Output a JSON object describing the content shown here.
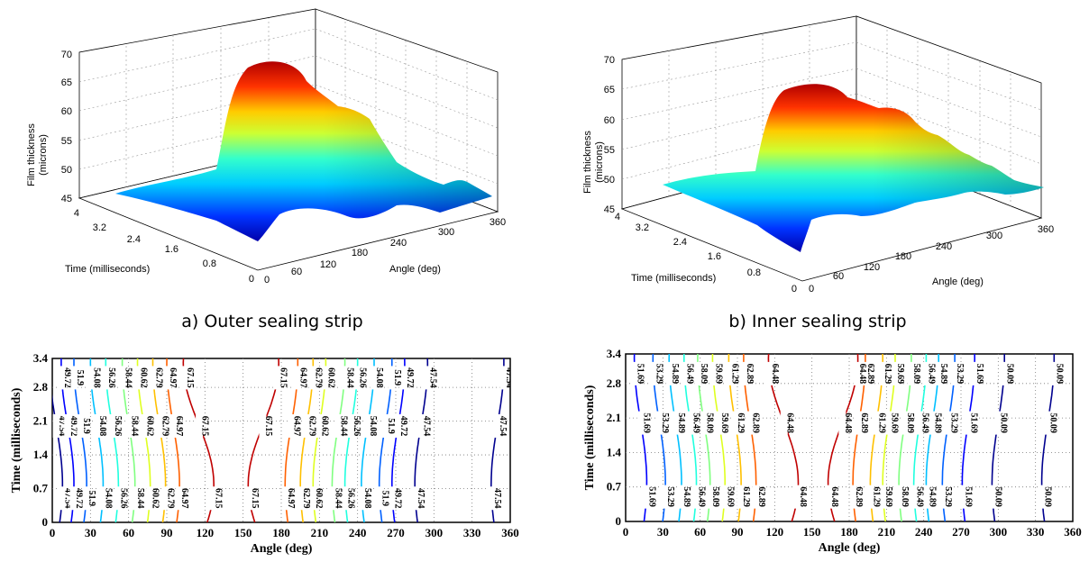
{
  "captions": {
    "a": "a) Outer sealing strip",
    "b": "b) Inner sealing strip"
  },
  "colors": {
    "jet_low": "#0000aa",
    "jet_mid": "#00ffff",
    "jet_high": "#aa0000",
    "grid": "#888888",
    "axis": "#000000"
  },
  "chart_data": [
    {
      "type": "surface",
      "panel": "a",
      "xlabel": "Angle (deg)",
      "ylabel": "Time (milliseconds)",
      "zlabel_lines": [
        "Film thickness",
        "(microns)"
      ],
      "x_ticks": [
        "0",
        "60",
        "120",
        "180",
        "240",
        "300",
        "360"
      ],
      "y_ticks": [
        "0",
        "0.8",
        "1.6",
        "2.4",
        "3.2",
        "4"
      ],
      "z_ticks": [
        "45",
        "50",
        "55",
        "60",
        "65",
        "70"
      ],
      "xlim": [
        0,
        360
      ],
      "ylim": [
        0,
        4
      ],
      "zlim": [
        45,
        70
      ],
      "grid": true,
      "colormap": "jet",
      "profile": {
        "angle": [
          0,
          30,
          60,
          90,
          120,
          135,
          150,
          165,
          180,
          210,
          240,
          270,
          300,
          330,
          360
        ],
        "thickness": [
          46,
          47,
          51,
          58,
          65,
          67,
          67.2,
          66,
          64,
          61,
          56,
          51,
          47,
          45.8,
          45.5
        ]
      }
    },
    {
      "type": "surface",
      "panel": "b",
      "xlabel": "Angle (deg)",
      "ylabel": "Time (milliseconds)",
      "zlabel_lines": [
        "Film thickness",
        "(microns)"
      ],
      "x_ticks": [
        "0",
        "60",
        "120",
        "180",
        "240",
        "300",
        "360"
      ],
      "y_ticks": [
        "0",
        "0.8",
        "1.6",
        "2.4",
        "3.2",
        "4"
      ],
      "z_ticks": [
        "45",
        "50",
        "55",
        "60",
        "65",
        "70"
      ],
      "xlim": [
        0,
        360
      ],
      "ylim": [
        0,
        4
      ],
      "zlim": [
        45,
        70
      ],
      "grid": true,
      "colormap": "jet",
      "profile": {
        "angle": [
          0,
          30,
          60,
          90,
          120,
          150,
          180,
          210,
          240,
          270,
          300,
          330,
          360
        ],
        "thickness": [
          49,
          51,
          56,
          60.5,
          64,
          64.5,
          63,
          61,
          57,
          53,
          51,
          49.5,
          48.5
        ]
      }
    },
    {
      "type": "contour",
      "panel": "c",
      "xlabel": "Angle (deg)",
      "ylabel": "Time (milliseconds)",
      "x_ticks": [
        "0",
        "30",
        "60",
        "90",
        "120",
        "150",
        "180",
        "210",
        "240",
        "270",
        "300",
        "330",
        "360"
      ],
      "y_ticks": [
        "0",
        "0.7",
        "1.4",
        "2.1",
        "2.8",
        "3.4"
      ],
      "xlim": [
        0,
        360
      ],
      "ylim": [
        0,
        3.4
      ],
      "grid": true,
      "levels": [
        {
          "label": "47.54",
          "angles": [
            3,
            290,
            350
          ]
        },
        {
          "label": "49.72",
          "angles": [
            12,
            272
          ]
        },
        {
          "label": "51.9",
          "angles": [
            22,
            262
          ]
        },
        {
          "label": "54.08",
          "angles": [
            35,
            248
          ]
        },
        {
          "label": "56.26",
          "angles": [
            47,
            235
          ]
        },
        {
          "label": "58.44",
          "angles": [
            60,
            225
          ]
        },
        {
          "label": "60.62",
          "angles": [
            72,
            210
          ]
        },
        {
          "label": "62.79",
          "angles": [
            84,
            200
          ]
        },
        {
          "label": "64.97",
          "angles": [
            95,
            188
          ]
        },
        {
          "label": "67.15",
          "angles": [
            115,
            166
          ]
        }
      ]
    },
    {
      "type": "contour",
      "panel": "d",
      "xlabel": "Angle (deg)",
      "ylabel": "Time (milliseconds)",
      "x_ticks": [
        "0",
        "30",
        "60",
        "90",
        "120",
        "150",
        "180",
        "210",
        "240",
        "270",
        "300",
        "330",
        "360"
      ],
      "y_ticks": [
        "0",
        "0.7",
        "1.4",
        "2.1",
        "2.8",
        "3.4"
      ],
      "xlim": [
        0,
        360
      ],
      "ylim": [
        0,
        3.4
      ],
      "grid": true,
      "levels": [
        {
          "label": "50.09",
          "angles": [
            300,
            340
          ]
        },
        {
          "label": "51.69",
          "angles": [
            12,
            276
          ]
        },
        {
          "label": "53.29",
          "angles": [
            27,
            260
          ]
        },
        {
          "label": "54.89",
          "angles": [
            40,
            247
          ]
        },
        {
          "label": "56.49",
          "angles": [
            52,
            237
          ]
        },
        {
          "label": "58.09",
          "angles": [
            63,
            225
          ]
        },
        {
          "label": "59.69",
          "angles": [
            75,
            212
          ]
        },
        {
          "label": "61.29",
          "angles": [
            88,
            202
          ]
        },
        {
          "label": "62.89",
          "angles": [
            100,
            188
          ]
        },
        {
          "label": "64.48",
          "angles": [
            127,
            175
          ]
        }
      ]
    }
  ]
}
